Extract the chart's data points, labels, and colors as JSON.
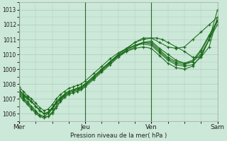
{
  "background_color": "#cce8d8",
  "grid_color": "#aaccb8",
  "line_color": "#1a6b1a",
  "marker_color": "#1a6b1a",
  "xlabel": "Pression niveau de la mer( hPa )",
  "ylim": [
    1005.5,
    1013.5
  ],
  "yticks": [
    1006,
    1007,
    1008,
    1009,
    1010,
    1011,
    1012,
    1013
  ],
  "day_labels": [
    "Mer",
    "Jeu",
    "Ven",
    "Sam"
  ],
  "day_positions": [
    0,
    48,
    96,
    144
  ],
  "total_hours": 144,
  "series": [
    {
      "x": [
        0,
        3,
        6,
        9,
        12,
        15,
        18,
        21,
        24,
        27,
        30,
        33,
        36,
        39,
        42,
        45,
        48,
        54,
        60,
        66,
        72,
        78,
        84,
        90,
        96,
        102,
        108,
        114,
        120,
        126,
        132,
        138,
        144
      ],
      "y": [
        1007.5,
        1007.2,
        1007.0,
        1006.8,
        1006.5,
        1006.2,
        1006.0,
        1006.0,
        1006.3,
        1006.7,
        1007.0,
        1007.3,
        1007.5,
        1007.6,
        1007.7,
        1007.8,
        1008.0,
        1008.5,
        1009.0,
        1009.5,
        1010.0,
        1010.4,
        1010.8,
        1011.1,
        1011.1,
        1010.8,
        1010.5,
        1010.4,
        1010.5,
        1011.0,
        1011.5,
        1012.0,
        1012.5
      ]
    },
    {
      "x": [
        0,
        3,
        6,
        9,
        12,
        15,
        18,
        21,
        24,
        27,
        30,
        33,
        36,
        39,
        42,
        45,
        48,
        54,
        60,
        66,
        72,
        78,
        84,
        90,
        96,
        102,
        108,
        114,
        120,
        126,
        132,
        138,
        144
      ],
      "y": [
        1007.3,
        1007.0,
        1006.7,
        1006.4,
        1006.1,
        1005.9,
        1005.8,
        1005.8,
        1006.0,
        1006.4,
        1006.8,
        1007.1,
        1007.3,
        1007.4,
        1007.5,
        1007.6,
        1007.8,
        1008.3,
        1008.8,
        1009.3,
        1009.8,
        1010.2,
        1010.5,
        1010.8,
        1010.9,
        1010.4,
        1010.0,
        1009.6,
        1009.4,
        1009.5,
        1010.0,
        1011.0,
        1012.0
      ]
    },
    {
      "x": [
        0,
        3,
        6,
        9,
        12,
        15,
        18,
        21,
        24,
        27,
        30,
        33,
        36,
        39,
        42,
        45,
        48,
        54,
        60,
        66,
        72,
        78,
        84,
        90,
        96,
        102,
        108,
        114,
        120,
        126,
        132,
        138,
        144
      ],
      "y": [
        1007.6,
        1007.3,
        1007.1,
        1006.8,
        1006.5,
        1006.2,
        1006.0,
        1006.1,
        1006.4,
        1006.7,
        1007.0,
        1007.2,
        1007.4,
        1007.5,
        1007.6,
        1007.7,
        1007.9,
        1008.4,
        1008.9,
        1009.4,
        1009.9,
        1010.3,
        1010.6,
        1010.8,
        1010.7,
        1010.2,
        1009.7,
        1009.4,
        1009.3,
        1009.5,
        1010.2,
        1011.2,
        1012.2
      ]
    },
    {
      "x": [
        0,
        3,
        6,
        9,
        12,
        15,
        18,
        21,
        24,
        27,
        30,
        33,
        36,
        39,
        42,
        45,
        48,
        54,
        60,
        66,
        72,
        78,
        84,
        90,
        96,
        100,
        104,
        108,
        114,
        120,
        126,
        132,
        138,
        144
      ],
      "y": [
        1007.4,
        1007.1,
        1006.8,
        1006.5,
        1006.2,
        1005.9,
        1005.8,
        1006.0,
        1006.3,
        1006.7,
        1007.0,
        1007.3,
        1007.5,
        1007.6,
        1007.7,
        1007.8,
        1008.0,
        1008.5,
        1009.0,
        1009.5,
        1010.0,
        1010.4,
        1010.8,
        1011.0,
        1011.1,
        1011.1,
        1011.0,
        1010.8,
        1010.5,
        1010.2,
        1009.8,
        1009.8,
        1010.5,
        1012.5
      ]
    },
    {
      "x": [
        0,
        3,
        6,
        9,
        12,
        15,
        18,
        21,
        24,
        27,
        30,
        33,
        36,
        39,
        42,
        45,
        48,
        54,
        60,
        66,
        72,
        78,
        84,
        90,
        96,
        102,
        108,
        114,
        120,
        126,
        132,
        138,
        144
      ],
      "y": [
        1007.8,
        1007.5,
        1007.2,
        1007.0,
        1006.7,
        1006.4,
        1006.2,
        1006.3,
        1006.6,
        1007.0,
        1007.3,
        1007.5,
        1007.7,
        1007.8,
        1007.9,
        1008.0,
        1008.2,
        1008.7,
        1009.2,
        1009.7,
        1010.1,
        1010.4,
        1010.6,
        1010.7,
        1010.6,
        1010.1,
        1009.6,
        1009.3,
        1009.2,
        1009.3,
        1009.8,
        1011.0,
        1012.3
      ]
    },
    {
      "x": [
        0,
        3,
        6,
        9,
        12,
        15,
        18,
        21,
        24,
        27,
        30,
        33,
        36,
        39,
        42,
        45,
        48,
        54,
        60,
        66,
        72,
        78,
        84,
        90,
        96,
        102,
        108,
        114,
        120,
        126,
        132,
        138,
        144
      ],
      "y": [
        1007.2,
        1006.9,
        1006.6,
        1006.3,
        1006.0,
        1005.8,
        1005.7,
        1005.8,
        1006.1,
        1006.5,
        1006.9,
        1007.2,
        1007.4,
        1007.5,
        1007.6,
        1007.7,
        1007.9,
        1008.4,
        1008.9,
        1009.4,
        1009.9,
        1010.3,
        1010.6,
        1010.8,
        1010.8,
        1010.3,
        1009.8,
        1009.5,
        1009.4,
        1009.6,
        1010.3,
        1011.3,
        1012.3
      ]
    },
    {
      "x": [
        0,
        3,
        6,
        9,
        12,
        15,
        18,
        21,
        24,
        27,
        30,
        33,
        36,
        39,
        42,
        45,
        48,
        54,
        60,
        66,
        72,
        78,
        84,
        90,
        96,
        102,
        108,
        114,
        120,
        126,
        132,
        138,
        144
      ],
      "y": [
        1007.6,
        1007.3,
        1007.0,
        1006.8,
        1006.5,
        1006.2,
        1006.0,
        1006.1,
        1006.4,
        1006.8,
        1007.1,
        1007.3,
        1007.5,
        1007.6,
        1007.7,
        1007.8,
        1008.0,
        1008.5,
        1009.0,
        1009.5,
        1009.9,
        1010.2,
        1010.4,
        1010.5,
        1010.4,
        1009.9,
        1009.4,
        1009.1,
        1009.0,
        1009.2,
        1009.9,
        1011.0,
        1013.0
      ]
    }
  ]
}
